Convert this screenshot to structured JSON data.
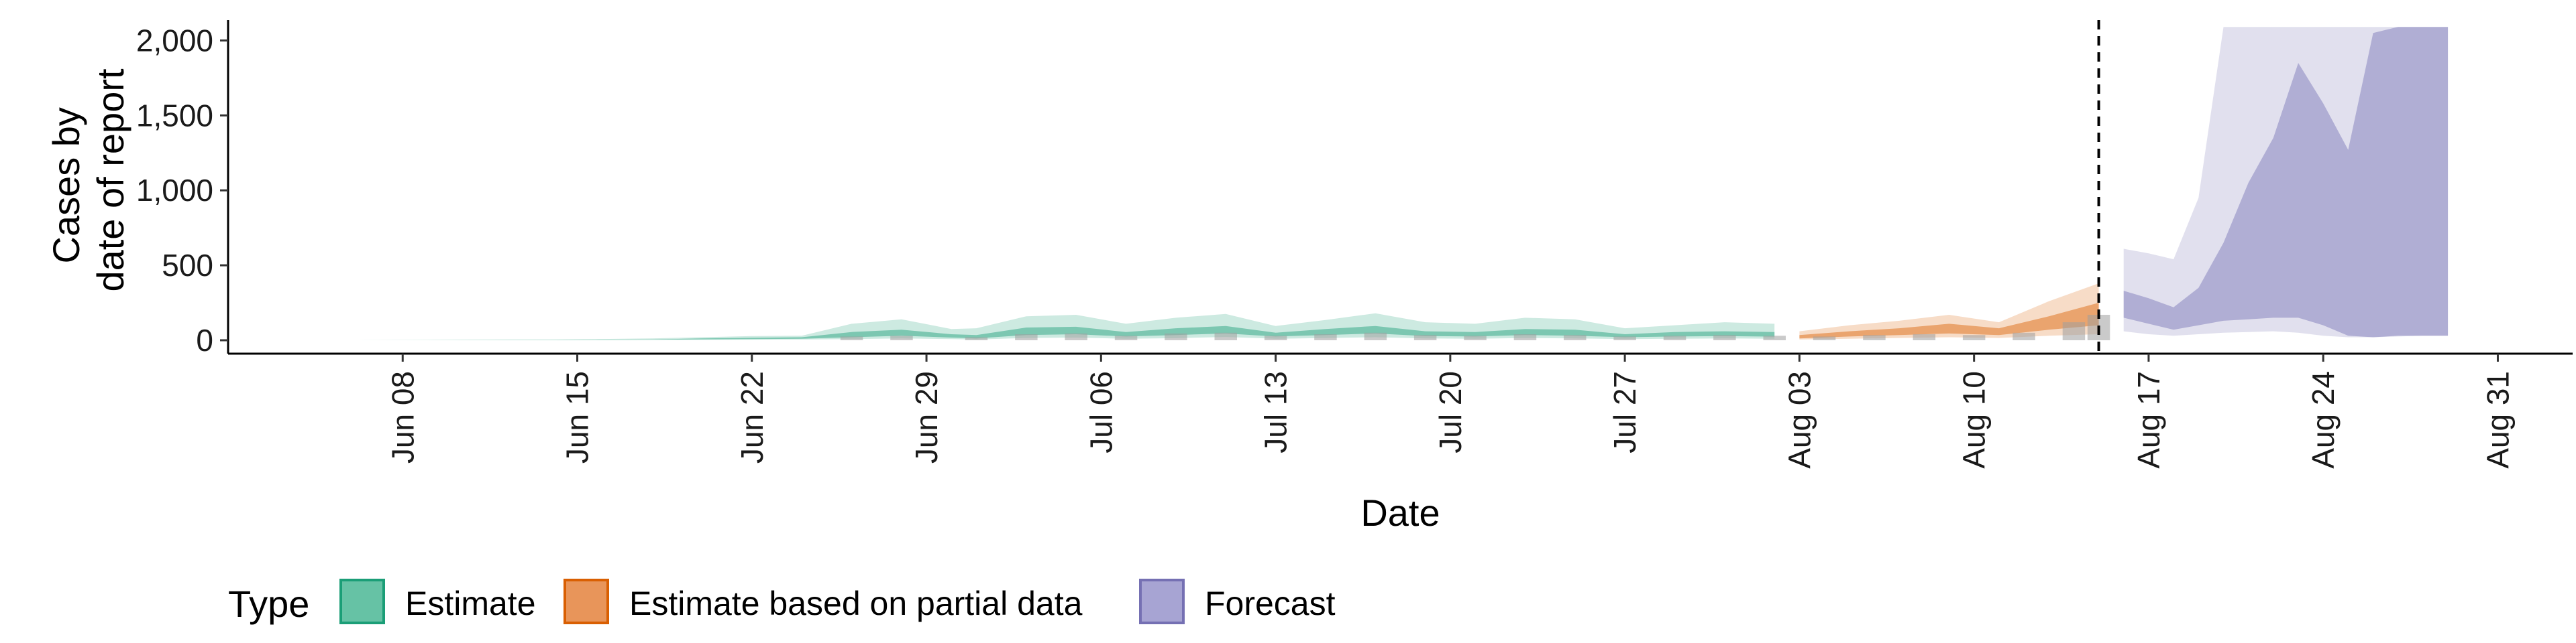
{
  "chart_data": {
    "type": "area",
    "xlabel": "Date",
    "ylabel_lines": [
      "Cases by",
      "date of report"
    ],
    "ylim": [
      0,
      2100
    ],
    "y_ticks": [
      0,
      500,
      1000,
      1500,
      2000
    ],
    "y_tick_labels": [
      "0",
      "500",
      "1,000",
      "1,500",
      "2,000"
    ],
    "x_domain": [
      "2020-06-01",
      "2020-09-03"
    ],
    "x_ticks": [
      "2020-06-08",
      "2020-06-15",
      "2020-06-22",
      "2020-06-29",
      "2020-07-06",
      "2020-07-13",
      "2020-07-20",
      "2020-07-27",
      "2020-08-03",
      "2020-08-10",
      "2020-08-17",
      "2020-08-24",
      "2020-08-31"
    ],
    "x_tick_labels": [
      "Jun 08",
      "Jun 15",
      "Jun 22",
      "Jun 29",
      "Jul 06",
      "Jul 13",
      "Jul 20",
      "Jul 27",
      "Aug 03",
      "Aug 10",
      "Aug 17",
      "Aug 24",
      "Aug 31"
    ],
    "vline_date": "2020-08-15",
    "legend": {
      "title": "Type",
      "position": "bottom",
      "entries": [
        {
          "label": "Estimate",
          "fill": "#66c2a5",
          "stroke": "#1b9e77"
        },
        {
          "label": "Estimate based on partial data",
          "fill": "#e8955a",
          "stroke": "#d95f02"
        },
        {
          "label": "Forecast",
          "fill": "#a7a4d3",
          "stroke": "#7570b3"
        }
      ]
    },
    "colors": {
      "estimate": "#1b9e77",
      "partial": "#d95f02",
      "forecast": "#7570b3",
      "observed_bars": "#9e9e9e"
    },
    "series": [
      {
        "name": "Estimate",
        "dates": [
          "2020-06-06",
          "2020-06-10",
          "2020-06-14",
          "2020-06-18",
          "2020-06-20",
          "2020-06-22",
          "2020-06-24",
          "2020-06-26",
          "2020-06-28",
          "2020-06-30",
          "2020-07-01",
          "2020-07-03",
          "2020-07-05",
          "2020-07-07",
          "2020-07-09",
          "2020-07-11",
          "2020-07-13",
          "2020-07-15",
          "2020-07-17",
          "2020-07-19",
          "2020-07-21",
          "2020-07-23",
          "2020-07-25",
          "2020-07-27",
          "2020-07-29",
          "2020-07-31",
          "2020-08-02"
        ],
        "lower_outer": [
          0,
          0,
          0,
          2,
          3,
          4,
          5,
          8,
          12,
          8,
          5,
          15,
          18,
          10,
          14,
          22,
          10,
          15,
          20,
          12,
          10,
          15,
          12,
          8,
          10,
          12,
          10
        ],
        "lower_inner": [
          0,
          0,
          0,
          4,
          6,
          8,
          10,
          20,
          30,
          18,
          12,
          35,
          40,
          25,
          35,
          45,
          25,
          35,
          45,
          28,
          25,
          35,
          30,
          20,
          25,
          28,
          24
        ],
        "upper_inner": [
          0,
          1,
          2,
          6,
          12,
          16,
          20,
          55,
          70,
          40,
          35,
          85,
          90,
          55,
          80,
          95,
          50,
          75,
          95,
          60,
          55,
          75,
          70,
          40,
          55,
          60,
          55
        ],
        "upper_outer": [
          0,
          2,
          4,
          12,
          20,
          28,
          30,
          110,
          140,
          75,
          80,
          160,
          170,
          110,
          150,
          175,
          95,
          135,
          180,
          120,
          110,
          150,
          140,
          80,
          100,
          120,
          110
        ]
      },
      {
        "name": "Estimate based on partial data",
        "dates": [
          "2020-08-03",
          "2020-08-05",
          "2020-08-07",
          "2020-08-09",
          "2020-08-11",
          "2020-08-13",
          "2020-08-15"
        ],
        "lower_outer": [
          5,
          10,
          15,
          20,
          15,
          30,
          40
        ],
        "lower_inner": [
          12,
          25,
          35,
          45,
          35,
          70,
          100
        ],
        "upper_inner": [
          35,
          60,
          80,
          110,
          80,
          160,
          250
        ],
        "upper_outer": [
          60,
          100,
          130,
          170,
          120,
          260,
          380
        ]
      },
      {
        "name": "Forecast",
        "dates": [
          "2020-08-16",
          "2020-08-17",
          "2020-08-18",
          "2020-08-19",
          "2020-08-20",
          "2020-08-21",
          "2020-08-22",
          "2020-08-23",
          "2020-08-24",
          "2020-08-25",
          "2020-08-26",
          "2020-08-27",
          "2020-08-28",
          "2020-08-29"
        ],
        "lower_outer": [
          60,
          40,
          30,
          40,
          50,
          55,
          60,
          50,
          30,
          20,
          20,
          25,
          30,
          30
        ],
        "lower_inner": [
          150,
          110,
          70,
          100,
          130,
          140,
          150,
          150,
          100,
          30,
          20,
          30,
          30,
          30
        ],
        "upper_inner": [
          330,
          280,
          220,
          350,
          650,
          1050,
          1350,
          1850,
          1580,
          1270,
          2050,
          2090,
          2090,
          2090
        ],
        "upper_outer": [
          610,
          580,
          540,
          950,
          2090,
          2090,
          2090,
          2090,
          2090,
          2090,
          2090,
          2090,
          2090,
          2090
        ]
      }
    ],
    "observed_bars": {
      "dates": [
        "2020-06-26",
        "2020-06-28",
        "2020-07-01",
        "2020-07-03",
        "2020-07-05",
        "2020-07-07",
        "2020-07-09",
        "2020-07-11",
        "2020-07-13",
        "2020-07-15",
        "2020-07-17",
        "2020-07-19",
        "2020-07-21",
        "2020-07-23",
        "2020-07-25",
        "2020-07-27",
        "2020-07-29",
        "2020-07-31",
        "2020-08-02",
        "2020-08-04",
        "2020-08-06",
        "2020-08-08",
        "2020-08-10",
        "2020-08-12",
        "2020-08-14",
        "2020-08-15"
      ],
      "values": [
        25,
        30,
        20,
        40,
        45,
        30,
        45,
        50,
        30,
        40,
        50,
        35,
        30,
        40,
        35,
        25,
        30,
        35,
        30,
        25,
        35,
        40,
        35,
        50,
        120,
        170
      ]
    }
  }
}
